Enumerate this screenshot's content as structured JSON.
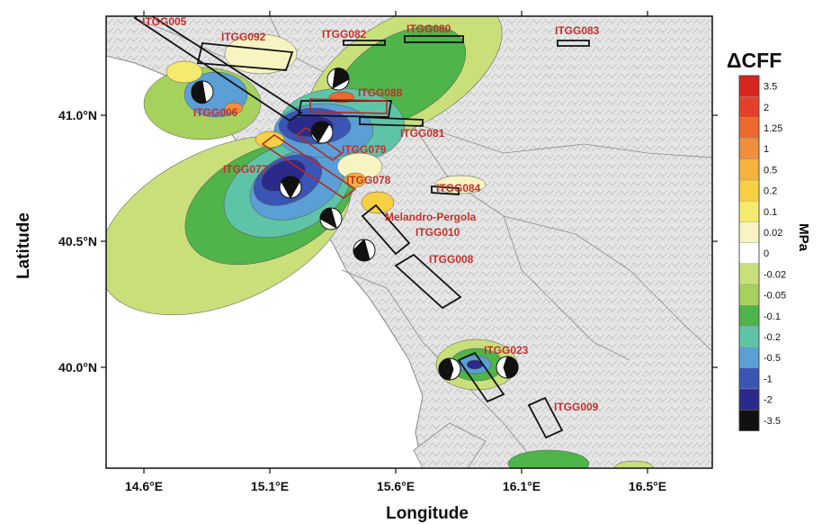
{
  "axes": {
    "xlabel": "Longitude",
    "ylabel": "Latitude",
    "lon_ticks": [
      "14.6°E",
      "15.1°E",
      "15.6°E",
      "16.1°E",
      "16.5°E"
    ],
    "lat_ticks": [
      "41.0°N",
      "40.5°N",
      "40.0°N"
    ]
  },
  "colorbar": {
    "title": "ΔCFF",
    "unit": "MPa",
    "levels": [
      "3.5",
      "2",
      "1.25",
      "1",
      "0.5",
      "0.2",
      "0.1",
      "0.02",
      "0",
      "-0.02",
      "-0.05",
      "-0.1",
      "-0.2",
      "-0.5",
      "-1",
      "-2",
      "-3.5"
    ],
    "colors": [
      "#d8261e",
      "#e4412a",
      "#ec6a2e",
      "#f08e3b",
      "#f5b23f",
      "#f7d043",
      "#f6ea6e",
      "#f7f4c2",
      "#ffffff",
      "#c9df7a",
      "#a6d15d",
      "#4fb44a",
      "#5ec4a8",
      "#5a9fd6",
      "#3b55b6",
      "#2a2a8a",
      "#111111"
    ]
  },
  "faults": [
    {
      "label": "ITGG005"
    },
    {
      "label": "ITGG092"
    },
    {
      "label": "ITGG082"
    },
    {
      "label": "ITGG080"
    },
    {
      "label": "ITGG083"
    },
    {
      "label": "ITGG088"
    },
    {
      "label": "ITGG006"
    },
    {
      "label": "ITGG081"
    },
    {
      "label": "ITGG079"
    },
    {
      "label": "ITGG077"
    },
    {
      "label": "ITGG078"
    },
    {
      "label": "ITGG084"
    },
    {
      "label": "Melandro-Pergola"
    },
    {
      "label": "ITGG010"
    },
    {
      "label": "ITGG008"
    },
    {
      "label": "ITGG023"
    },
    {
      "label": "ITGG009"
    }
  ],
  "colors": {
    "fault_label": "#c4302b",
    "sea": "#ffffff",
    "land": "#e9e9e9"
  }
}
